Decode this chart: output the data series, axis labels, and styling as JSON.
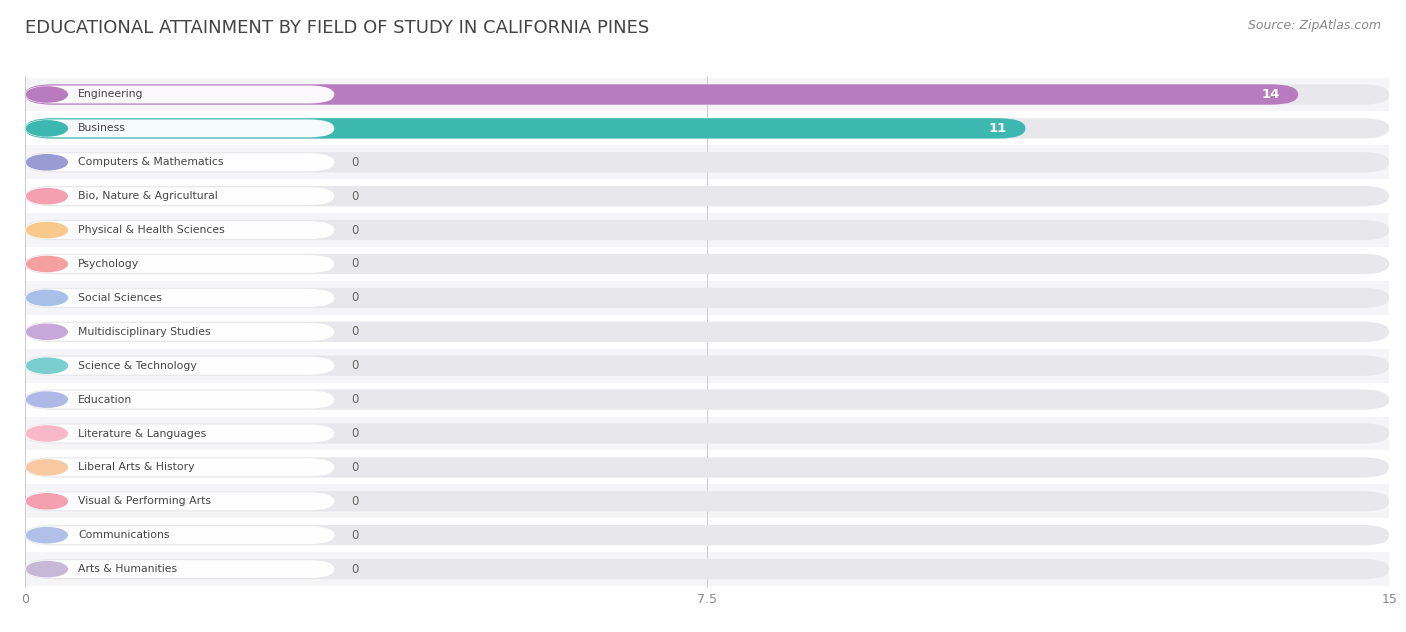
{
  "title": "EDUCATIONAL ATTAINMENT BY FIELD OF STUDY IN CALIFORNIA PINES",
  "source": "Source: ZipAtlas.com",
  "categories": [
    "Engineering",
    "Business",
    "Computers & Mathematics",
    "Bio, Nature & Agricultural",
    "Physical & Health Sciences",
    "Psychology",
    "Social Sciences",
    "Multidisciplinary Studies",
    "Science & Technology",
    "Education",
    "Literature & Languages",
    "Liberal Arts & History",
    "Visual & Performing Arts",
    "Communications",
    "Arts & Humanities"
  ],
  "values": [
    14,
    11,
    0,
    0,
    0,
    0,
    0,
    0,
    0,
    0,
    0,
    0,
    0,
    0,
    0
  ],
  "bar_colors": [
    "#b87bbf",
    "#3db8b0",
    "#9b9bd4",
    "#f4a0b0",
    "#f8c98a",
    "#f4a0a0",
    "#a8c0e8",
    "#c8a8d8",
    "#7acece",
    "#b0b8e8",
    "#f8b8c8",
    "#f8c8a0",
    "#f4a0b0",
    "#b0c0e8",
    "#c8b8d8"
  ],
  "xlim": [
    0,
    15
  ],
  "xticks": [
    0,
    7.5,
    15
  ],
  "background_color": "#ffffff",
  "bar_bg_color": "#e8e8ec",
  "row_bg_even": "#f5f5f8",
  "row_bg_odd": "#ffffff",
  "title_fontsize": 13,
  "source_fontsize": 9
}
